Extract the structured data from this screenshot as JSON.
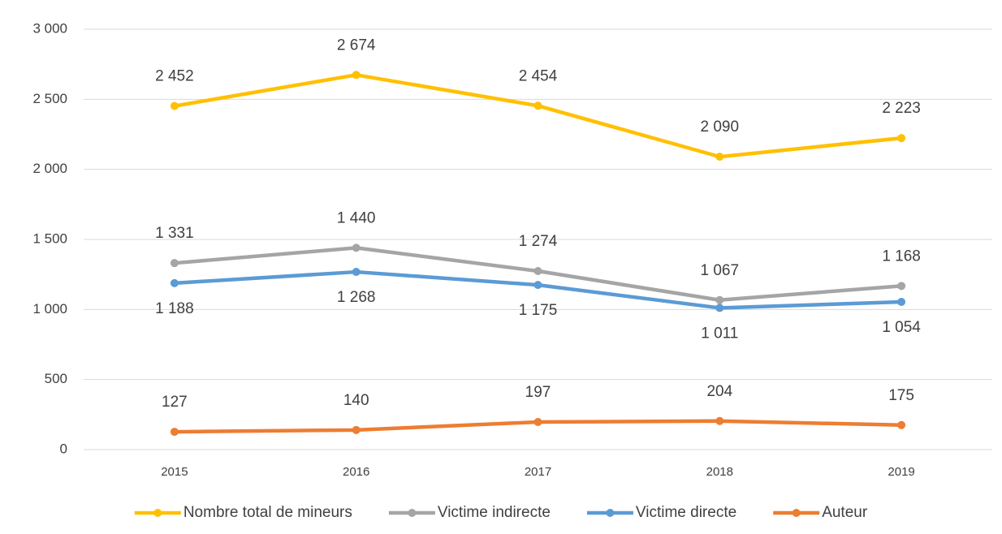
{
  "chart_data": {
    "type": "line",
    "categories": [
      "2015",
      "2016",
      "2017",
      "2018",
      "2019"
    ],
    "series": [
      {
        "name": "Nombre total de mineurs",
        "color": "#FFC000",
        "values": [
          2452,
          2674,
          2454,
          2090,
          2223
        ],
        "value_labels": [
          "2 452",
          "2 674",
          "2 454",
          "2 090",
          "2 223"
        ]
      },
      {
        "name": "Victime indirecte",
        "color": "#A5A5A5",
        "values": [
          1331,
          1440,
          1274,
          1067,
          1168
        ],
        "value_labels": [
          "1 331",
          "1 440",
          "1 274",
          "1 067",
          "1 168"
        ]
      },
      {
        "name": "Victime directe",
        "color": "#5B9BD5",
        "values": [
          1188,
          1268,
          1175,
          1011,
          1054
        ],
        "value_labels": [
          "1 188",
          "1 268",
          "1 175",
          "1 011",
          "1 054"
        ]
      },
      {
        "name": "Auteur",
        "color": "#ED7D31",
        "values": [
          127,
          140,
          197,
          204,
          175
        ],
        "value_labels": [
          "127",
          "140",
          "197",
          "204",
          "175"
        ]
      }
    ],
    "ylim": [
      0,
      3000
    ],
    "yticks": [
      0,
      500,
      {
        "value": 1000,
        "label": "1 000"
      },
      {
        "value": 1500,
        "label": "1 500"
      },
      {
        "value": 2000,
        "label": "2 000"
      },
      {
        "value": 2500,
        "label": "2 500"
      },
      {
        "value": 3000,
        "label": "3 000"
      }
    ],
    "grid": true,
    "legend": "bottom"
  }
}
